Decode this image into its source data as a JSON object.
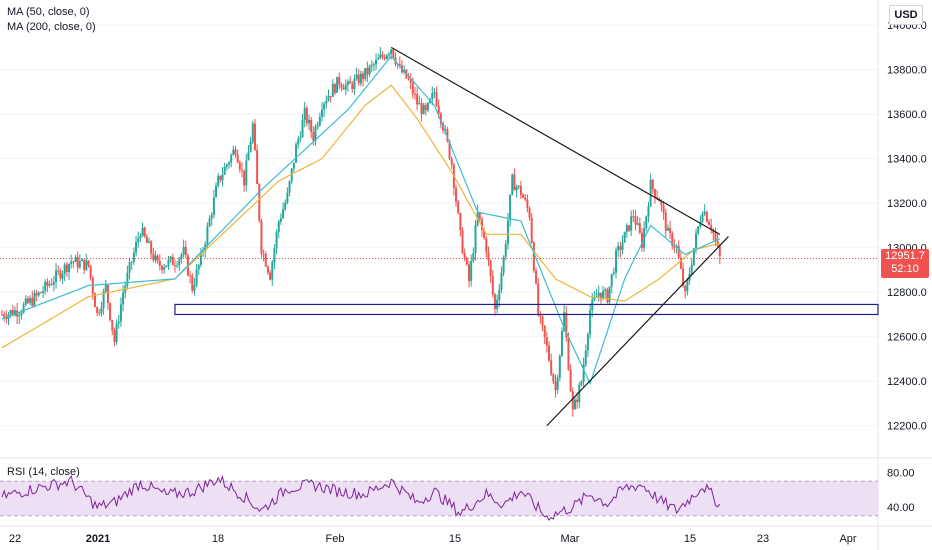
{
  "chart_data": {
    "type": "line",
    "currency": "USD",
    "price_axis": {
      "ylim": [
        12100,
        14050
      ],
      "ticks": [
        12200,
        12400,
        12600,
        12800,
        13000,
        13200,
        13400,
        13600,
        13800,
        14000
      ],
      "tick_labels": [
        "12200.0",
        "12400.0",
        "12600.0",
        "12800.0",
        "13000.0",
        "13200.0",
        "13400.0",
        "13600.0",
        "13800.0",
        "14000.0"
      ]
    },
    "time_axis": {
      "tick_labels": [
        "22",
        "2021",
        "18",
        "Feb",
        "15",
        "Mar",
        "15",
        "23",
        "Apr"
      ]
    },
    "last_price": {
      "value": 12951.7,
      "label": "12951.7",
      "countdown": "52:10",
      "color": "#ef5350"
    },
    "legend": [
      "MA (50, close, 0)",
      "MA (200, close, 0)"
    ],
    "price_anchors": [
      [
        "0",
        12700
      ],
      [
        "2",
        12720
      ],
      [
        "4",
        12780
      ],
      [
        "6",
        12860
      ],
      [
        "8",
        12940
      ],
      [
        "10",
        12920
      ],
      [
        "11",
        12700
      ],
      [
        "12",
        12820
      ],
      [
        "13",
        12580
      ],
      [
        "14",
        12800
      ],
      [
        "16",
        13080
      ],
      [
        "18",
        12920
      ],
      [
        "20",
        12940
      ],
      [
        "21",
        12980
      ],
      [
        "22",
        12820
      ],
      [
        "23",
        12950
      ],
      [
        "25",
        13300
      ],
      [
        "27",
        13450
      ],
      [
        "28",
        13300
      ],
      [
        "29",
        13550
      ],
      [
        "30",
        13000
      ],
      [
        "31",
        12880
      ],
      [
        "32",
        13120
      ],
      [
        "33",
        13230
      ],
      [
        "34",
        13450
      ],
      [
        "35",
        13600
      ],
      [
        "36",
        13500
      ],
      [
        "37",
        13650
      ],
      [
        "39",
        13750
      ],
      [
        "40",
        13720
      ],
      [
        "42",
        13780
      ],
      [
        "44",
        13860
      ],
      [
        "45",
        13900
      ],
      [
        "46",
        13800
      ],
      [
        "47",
        13750
      ],
      [
        "48",
        13650
      ],
      [
        "49",
        13600
      ],
      [
        "50",
        13700
      ],
      [
        "51",
        13550
      ],
      [
        "52",
        13380
      ],
      [
        "53",
        13050
      ],
      [
        "54",
        12850
      ],
      [
        "55",
        13150
      ],
      [
        "56",
        13000
      ],
      [
        "57",
        12720
      ],
      [
        "58",
        12950
      ],
      [
        "59",
        13300
      ],
      [
        "60",
        13250
      ],
      [
        "61",
        13150
      ],
      [
        "62",
        12700
      ],
      [
        "63",
        12550
      ],
      [
        "64",
        12360
      ],
      [
        "65",
        12700
      ],
      [
        "66",
        12260
      ],
      [
        "67",
        12400
      ],
      [
        "68",
        12720
      ],
      [
        "69",
        12800
      ],
      [
        "70",
        12780
      ],
      [
        "71",
        12960
      ],
      [
        "72",
        13050
      ],
      [
        "73",
        13150
      ],
      [
        "74",
        13020
      ],
      [
        "75",
        13280
      ],
      [
        "76",
        13220
      ],
      [
        "77",
        13060
      ],
      [
        "78",
        13000
      ],
      [
        "79",
        12780
      ],
      [
        "80",
        13000
      ],
      [
        "81",
        13180
      ],
      [
        "82",
        13100
      ],
      [
        "83",
        12952
      ]
    ],
    "ma50_anchors": [
      [
        "0",
        12680
      ],
      [
        "10",
        12830
      ],
      [
        "20",
        12860
      ],
      [
        "30",
        13260
      ],
      [
        "40",
        13620
      ],
      [
        "45",
        13860
      ],
      [
        "50",
        13640
      ],
      [
        "55",
        13160
      ],
      [
        "60",
        13120
      ],
      [
        "65",
        12640
      ],
      [
        "68",
        12390
      ],
      [
        "72",
        12860
      ],
      [
        "75",
        13100
      ],
      [
        "79",
        12970
      ],
      [
        "83",
        13040
      ]
    ],
    "ma200_anchors": [
      [
        "0",
        12550
      ],
      [
        "10",
        12780
      ],
      [
        "20",
        12860
      ],
      [
        "26",
        13080
      ],
      [
        "32",
        13300
      ],
      [
        "37",
        13400
      ],
      [
        "42",
        13640
      ],
      [
        "45",
        13730
      ],
      [
        "48",
        13580
      ],
      [
        "52",
        13340
      ],
      [
        "56",
        13060
      ],
      [
        "60",
        13060
      ],
      [
        "64",
        12860
      ],
      [
        "68",
        12780
      ],
      [
        "72",
        12760
      ],
      [
        "76",
        12860
      ],
      [
        "80",
        12990
      ],
      [
        "83",
        13020
      ]
    ],
    "trendlines": [
      {
        "from": [
          "45",
          13900
        ],
        "to": [
          "83",
          13060
        ]
      },
      {
        "from": [
          "63",
          12200
        ],
        "to": [
          "84",
          13050
        ]
      }
    ],
    "support_band": [
      12700,
      12745
    ],
    "rsi": {
      "label": "RSI (14, close)",
      "ylim": [
        25,
        90
      ],
      "band": [
        30,
        70
      ],
      "tick_labels": [
        "80.00",
        "40.00"
      ],
      "ticks": [
        80,
        40
      ],
      "anchors": [
        [
          "0",
          52
        ],
        [
          "4",
          62
        ],
        [
          "8",
          70
        ],
        [
          "11",
          40
        ],
        [
          "13",
          45
        ],
        [
          "16",
          68
        ],
        [
          "19",
          54
        ],
        [
          "22",
          58
        ],
        [
          "25",
          73
        ],
        [
          "28",
          52
        ],
        [
          "30",
          36
        ],
        [
          "33",
          62
        ],
        [
          "36",
          66
        ],
        [
          "39",
          58
        ],
        [
          "42",
          55
        ],
        [
          "45",
          70
        ],
        [
          "48",
          45
        ],
        [
          "50",
          58
        ],
        [
          "53",
          33
        ],
        [
          "56",
          55
        ],
        [
          "58",
          43
        ],
        [
          "60",
          59
        ],
        [
          "63",
          28
        ],
        [
          "66",
          40
        ],
        [
          "68",
          55
        ],
        [
          "70",
          44
        ],
        [
          "72",
          62
        ],
        [
          "74",
          66
        ],
        [
          "76",
          48
        ],
        [
          "78",
          36
        ],
        [
          "80",
          54
        ],
        [
          "81",
          65
        ],
        [
          "82",
          55
        ],
        [
          "83",
          42
        ]
      ]
    }
  },
  "labels": {
    "ma50": "MA (50, close, 0)",
    "ma200": "MA (200, close, 0)",
    "currency": "USD",
    "last_price": "12951.7",
    "countdown": "52:10",
    "rsi": "RSI (14, close)"
  },
  "colors": {
    "up": "#26a69a",
    "down": "#ef5350",
    "ma50": "#3bbdd2",
    "ma200": "#f0b43a",
    "rsi": "#7e2398",
    "rsi_band": "#ede0f5",
    "trendline": "#1a1a1a",
    "support": "#1f1f8f",
    "axis_text": "#131722",
    "grid": "#f0f3fa"
  }
}
